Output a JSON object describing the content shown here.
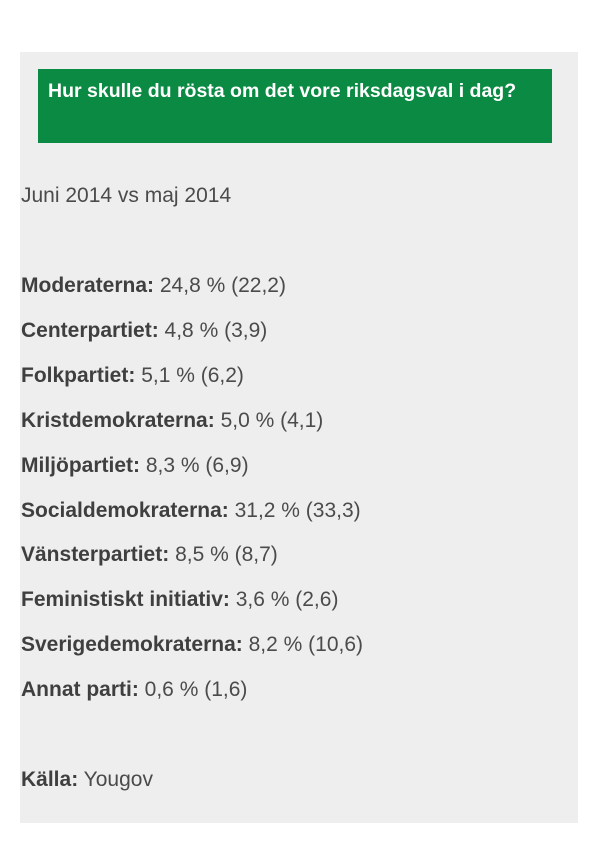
{
  "heading": "Hur skulle du rösta om det vore riksdagsval i dag?",
  "subheading": "Juni 2014 vs maj 2014",
  "results": [
    {
      "party": "Moderaterna:",
      "value": "24,8 % (22,2)"
    },
    {
      "party": "Centerpartiet:",
      "value": "4,8 % (3,9)"
    },
    {
      "party": "Folkpartiet:",
      "value": "5,1 % (6,2)"
    },
    {
      "party": "Kristdemokraterna:",
      "value": "5,0 % (4,1)"
    },
    {
      "party": "Miljöpartiet:",
      "value": "8,3 % (6,9)"
    },
    {
      "party": "Socialdemokraterna:",
      "value": "31,2 % (33,3)"
    },
    {
      "party": "Vänsterpartiet:",
      "value": "8,5 % (8,7)"
    },
    {
      "party": "Feministiskt initiativ:",
      "value": "3,6 % (2,6)"
    },
    {
      "party": "Sverigedemokraterna:",
      "value": "8,2 % (10,6)"
    },
    {
      "party": "Annat parti:",
      "value": "0,6 % (1,6)"
    }
  ],
  "source": {
    "label": "Källa:",
    "value": "Yougov"
  }
}
